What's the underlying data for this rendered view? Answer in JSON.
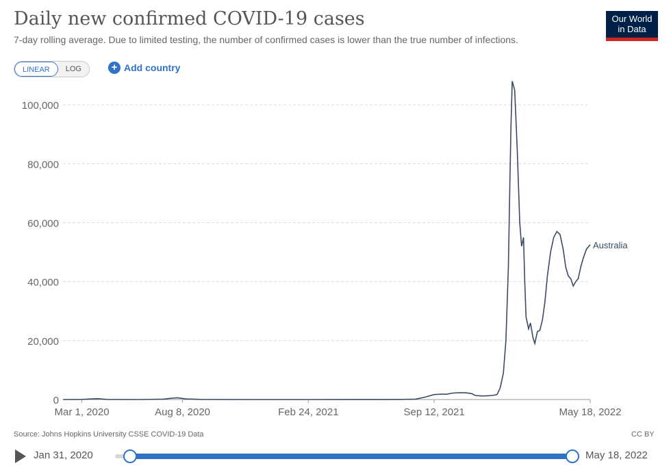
{
  "header": {
    "title": "Daily new confirmed COVID-19 cases",
    "subtitle": "7-day rolling average. Due to limited testing, the number of confirmed cases is lower than the true number of infections.",
    "logo_line1": "Our World",
    "logo_line2": "in Data"
  },
  "controls": {
    "linear_label": "LINEAR",
    "log_label": "LOG",
    "add_country_label": "Add country"
  },
  "footer": {
    "source": "Source: Johns Hopkins University CSSE COVID-19 Data",
    "license": "CC BY"
  },
  "timeline": {
    "start_label": "Jan 31, 2020",
    "end_label": "May 18, 2022"
  },
  "colors": {
    "line": "#3a4a63",
    "accent": "#2f73c7",
    "logo_bg": "#002147",
    "logo_bar": "#ce261e"
  },
  "chart_data": {
    "type": "line",
    "title": "Daily new confirmed COVID-19 cases",
    "xlabel": "",
    "ylabel": "",
    "ylim": [
      0,
      110000
    ],
    "yticks": [
      0,
      20000,
      40000,
      60000,
      80000,
      100000
    ],
    "ytick_labels": [
      "0",
      "20,000",
      "40,000",
      "60,000",
      "80,000",
      "100,000"
    ],
    "xlim": [
      0,
      838
    ],
    "xticks": [
      {
        "day": 30,
        "label": "Mar 1, 2020"
      },
      {
        "day": 190,
        "label": "Aug 8, 2020"
      },
      {
        "day": 390,
        "label": "Feb 24, 2021"
      },
      {
        "day": 590,
        "label": "Sep 12, 2021"
      },
      {
        "day": 838,
        "label": "May 18, 2022"
      }
    ],
    "grid": true,
    "series": [
      {
        "name": "Australia",
        "x": [
          0,
          30,
          55,
          70,
          120,
          160,
          170,
          182,
          195,
          220,
          300,
          400,
          500,
          540,
          560,
          575,
          590,
          600,
          610,
          620,
          630,
          640,
          650,
          655,
          660,
          668,
          676,
          683,
          690,
          695,
          700,
          704,
          708,
          710,
          712,
          714,
          718,
          722,
          726,
          729,
          732,
          734,
          736,
          740,
          743,
          747,
          750,
          754,
          758,
          762,
          766,
          770,
          775,
          780,
          785,
          790,
          795,
          799,
          803,
          807,
          811,
          815,
          819,
          823,
          827,
          832,
          836,
          838
        ],
        "y": [
          0,
          50,
          300,
          50,
          0,
          150,
          400,
          600,
          200,
          50,
          10,
          10,
          20,
          50,
          150,
          800,
          1700,
          1800,
          1800,
          2200,
          2300,
          2300,
          2000,
          1400,
          1300,
          1200,
          1300,
          1400,
          1700,
          4000,
          9000,
          20000,
          45000,
          70000,
          92000,
          108000,
          105000,
          85000,
          60000,
          52000,
          55000,
          40000,
          28000,
          24000,
          26000,
          21000,
          19000,
          23000,
          23500,
          27000,
          33000,
          42000,
          50000,
          55000,
          57000,
          56000,
          51000,
          45000,
          42000,
          41000,
          38500,
          40000,
          41000,
          45000,
          48000,
          51000,
          52000,
          52500
        ]
      }
    ]
  }
}
